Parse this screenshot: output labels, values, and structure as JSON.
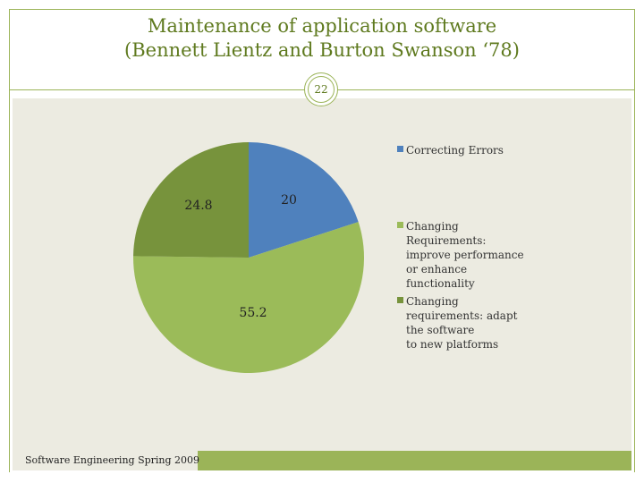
{
  "title_line1": "Maintenance of application software",
  "title_line2": "(Bennett Lientz and Burton Swanson ‘78)",
  "slide_number": "22",
  "footer": "Software Engineering Spring 2009",
  "chart_data": {
    "type": "pie",
    "title": "",
    "slices": [
      {
        "label": [
          "Correcting Errors"
        ],
        "value": 20,
        "value_label": "20",
        "color": "#4f81bd"
      },
      {
        "label": [
          "Changing",
          "Requirements:",
          "improve performance",
          "or enhance",
          "functionality"
        ],
        "value": 55.2,
        "value_label": "55.2",
        "color": "#9bbb59"
      },
      {
        "label": [
          "Changing",
          "requirements: adapt",
          "the software",
          "to new platforms"
        ],
        "value": 24.8,
        "value_label": "24.8",
        "color": "#77933c"
      }
    ],
    "legend_position": "right"
  }
}
